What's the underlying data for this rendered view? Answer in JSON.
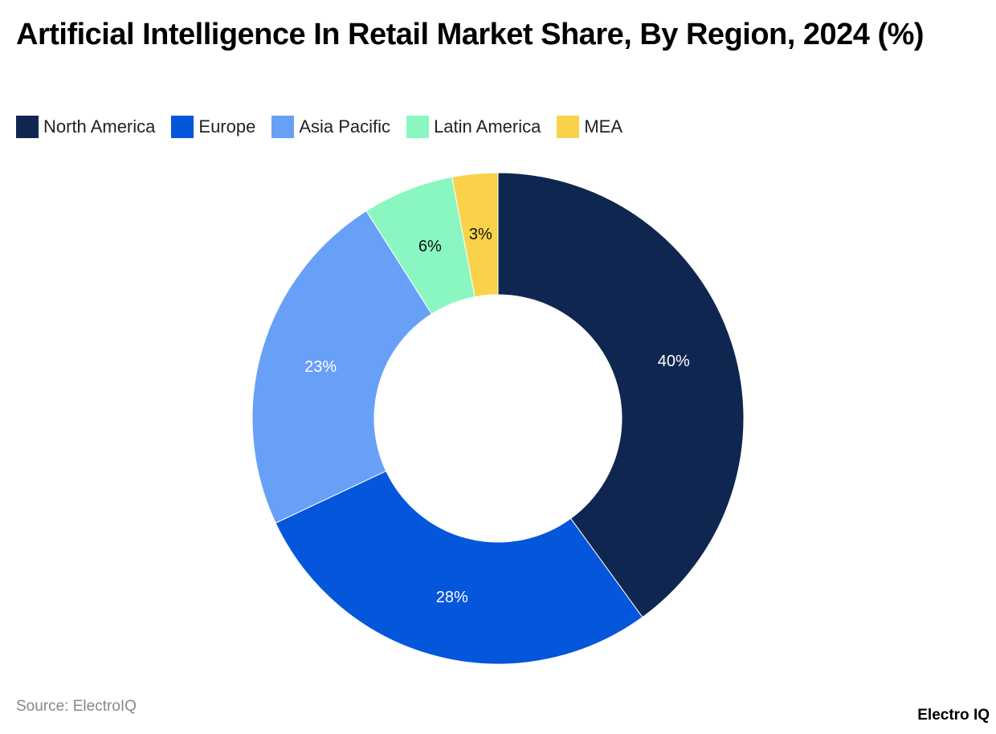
{
  "title": "Artificial Intelligence In Retail Market Share, By Region, 2024 (%)",
  "legend": [
    {
      "label": "North America",
      "color": "#0f2750"
    },
    {
      "label": "Europe",
      "color": "#0456db"
    },
    {
      "label": "Asia Pacific",
      "color": "#68a0f8"
    },
    {
      "label": "Latin America",
      "color": "#8af7c0"
    },
    {
      "label": "MEA",
      "color": "#fad24a"
    }
  ],
  "footer": {
    "source": "Source: ElectroIQ",
    "brand": "Electro IQ"
  },
  "chart_data": {
    "type": "pie",
    "variant": "donut",
    "title": "Artificial Intelligence In Retail Market Share, By Region, 2024 (%)",
    "categories": [
      "North America",
      "Europe",
      "Asia Pacific",
      "Latin America",
      "MEA"
    ],
    "values": [
      40,
      28,
      23,
      6,
      3
    ],
    "labels": [
      "40%",
      "28%",
      "23%",
      "6%",
      "3%"
    ],
    "colors": [
      "#0f2750",
      "#0456db",
      "#68a0f8",
      "#8af7c0",
      "#fad24a"
    ],
    "label_colors": [
      "#ffffff",
      "#ffffff",
      "#ffffff",
      "#111111",
      "#111111"
    ],
    "legend_position": "top-left",
    "unit": "%"
  }
}
